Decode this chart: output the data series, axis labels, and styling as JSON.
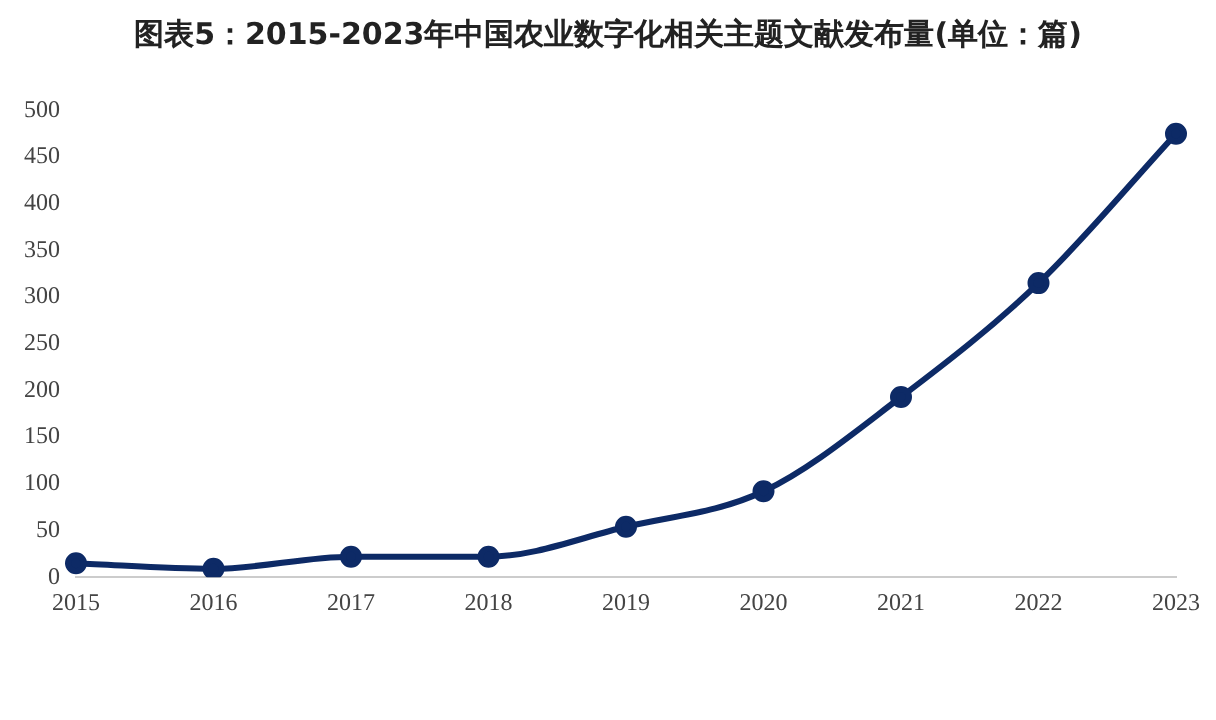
{
  "chart_data": {
    "type": "line",
    "title": "图表5：2015-2023年中国农业数字化相关主题文献发布量(单位：篇)",
    "categories": [
      "2015",
      "2016",
      "2017",
      "2018",
      "2019",
      "2020",
      "2021",
      "2022",
      "2023"
    ],
    "series": [
      {
        "color": "#0d2a66",
        "values": [
          15,
          9,
          22,
          22,
          54,
          92,
          193,
          315,
          475
        ]
      }
    ],
    "ylim": [
      0,
      500
    ],
    "yticks": [
      0,
      50,
      100,
      150,
      200,
      250,
      300,
      350,
      400,
      450,
      500
    ],
    "grid": false,
    "legend": false,
    "marker": "circle",
    "line_style": "solid"
  }
}
